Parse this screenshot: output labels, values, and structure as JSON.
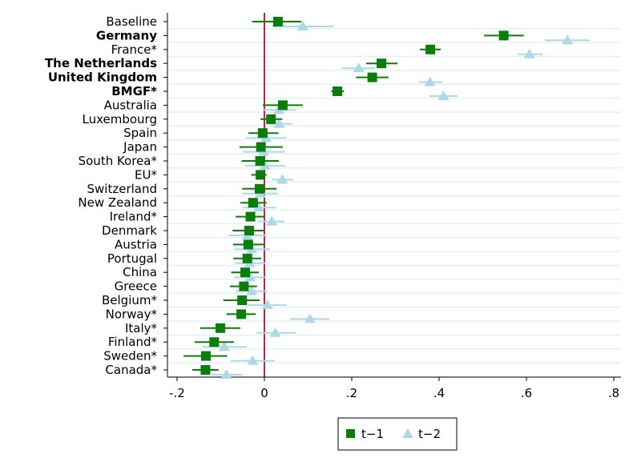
{
  "chart_data": {
    "type": "scatter",
    "subtype": "coefficient-plot",
    "title": "",
    "xlabel": "",
    "ylabel": "",
    "xlim": [
      -0.22,
      0.82
    ],
    "xticks": [
      -0.2,
      0,
      0.2,
      0.4,
      0.6,
      0.8
    ],
    "xtick_labels": [
      "-.2",
      "0",
      ".2",
      ".4",
      ".6",
      ".8"
    ],
    "reference_line": 0,
    "grid": true,
    "legend_position": "bottom",
    "categories": [
      "Baseline",
      "Germany",
      "France*",
      "The Netherlands",
      "United Kingdom",
      "BMGF*",
      "Australia",
      "Luxembourg",
      "Spain",
      "Japan",
      "South Korea*",
      "EU*",
      "Switzerland",
      "New Zealand",
      "Ireland*",
      "Denmark",
      "Austria",
      "Portugal",
      "China",
      "Greece",
      "Belgium*",
      "Norway*",
      "Italy*",
      "Finland*",
      "Sweden*",
      "Canada*"
    ],
    "bold_categories": [
      "Germany",
      "The Netherlands",
      "United Kingdom",
      "BMGF*"
    ],
    "series": [
      {
        "name": "t−1",
        "marker": "square",
        "color": "#0a7d0a",
        "values": [
          0.031,
          0.548,
          0.38,
          0.268,
          0.247,
          0.167,
          0.042,
          0.015,
          -0.004,
          -0.008,
          -0.01,
          -0.009,
          -0.011,
          -0.026,
          -0.032,
          -0.035,
          -0.037,
          -0.039,
          -0.044,
          -0.047,
          -0.051,
          -0.053,
          -0.101,
          -0.115,
          -0.134,
          -0.135
        ],
        "ci_low": [
          -0.028,
          0.503,
          0.356,
          0.233,
          0.21,
          0.153,
          -0.004,
          -0.009,
          -0.037,
          -0.057,
          -0.052,
          -0.03,
          -0.051,
          -0.055,
          -0.066,
          -0.073,
          -0.072,
          -0.071,
          -0.076,
          -0.079,
          -0.094,
          -0.087,
          -0.147,
          -0.16,
          -0.185,
          -0.165
        ],
        "ci_high": [
          0.085,
          0.594,
          0.404,
          0.305,
          0.284,
          0.182,
          0.088,
          0.041,
          0.032,
          0.042,
          0.033,
          0.005,
          0.028,
          0.005,
          0.0,
          0.0,
          0.0,
          -0.007,
          -0.013,
          -0.017,
          -0.011,
          -0.02,
          -0.055,
          -0.07,
          -0.085,
          -0.105
        ]
      },
      {
        "name": "t−2",
        "marker": "triangle",
        "color": "#add8e6",
        "values": [
          0.088,
          0.694,
          0.607,
          0.216,
          0.379,
          0.41,
          0.033,
          0.034,
          0.004,
          -0.002,
          0.001,
          0.041,
          -0.009,
          -0.013,
          0.017,
          -0.039,
          -0.029,
          -0.034,
          -0.033,
          -0.029,
          0.007,
          0.104,
          0.025,
          -0.092,
          -0.027,
          -0.087
        ],
        "ci_low": [
          0.018,
          0.642,
          0.58,
          0.178,
          0.353,
          0.378,
          -0.004,
          0.009,
          -0.042,
          -0.05,
          -0.044,
          0.016,
          -0.051,
          -0.051,
          -0.015,
          -0.082,
          -0.07,
          -0.068,
          -0.069,
          -0.066,
          -0.037,
          0.059,
          -0.018,
          -0.142,
          -0.078,
          -0.121
        ],
        "ci_high": [
          0.157,
          0.745,
          0.637,
          0.253,
          0.407,
          0.442,
          0.072,
          0.064,
          0.051,
          0.046,
          0.047,
          0.066,
          0.031,
          0.025,
          0.046,
          0.005,
          0.013,
          0.003,
          0.001,
          0.007,
          0.051,
          0.149,
          0.072,
          -0.04,
          0.024,
          -0.051
        ]
      }
    ]
  }
}
